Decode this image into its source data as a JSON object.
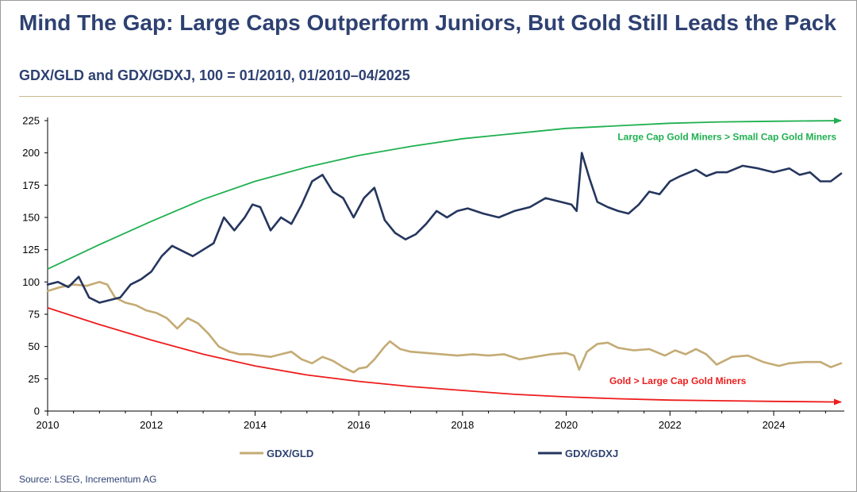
{
  "title": "Mind The Gap: Large Caps Outperform Juniors, But Gold Still Leads the Pack",
  "subtitle": "GDX/GLD and GDX/GDXJ, 100 = 01/2010, 01/2010–04/2025",
  "source": "Source: LSEG, Incrementum AG",
  "colors": {
    "title": "#2e4172",
    "gdx_gld": "#c4ab74",
    "gdx_gdxj": "#25365e",
    "green_arrow": "#1fb050",
    "red_arrow": "#ee1c1c"
  },
  "chart_data": {
    "type": "line",
    "xlim": [
      2010,
      2025.3
    ],
    "ylim": [
      0,
      225
    ],
    "x_ticks": [
      2010,
      2012,
      2014,
      2016,
      2018,
      2020,
      2022,
      2024
    ],
    "x_tick_labels": [
      "2010",
      "2012",
      "2014",
      "2016",
      "2018",
      "2020",
      "2022",
      "2024"
    ],
    "y_ticks": [
      0,
      25,
      50,
      75,
      100,
      125,
      150,
      175,
      200,
      225
    ],
    "y_tick_labels": [
      "0",
      "25",
      "50",
      "75",
      "100",
      "125",
      "150",
      "175",
      "200",
      "225"
    ],
    "legend_position": "bottom",
    "series": [
      {
        "name": "GDX/GLD",
        "color": "#c4ab74",
        "x": [
          2010.0,
          2010.25,
          2010.5,
          2010.75,
          2011.0,
          2011.15,
          2011.3,
          2011.5,
          2011.7,
          2011.9,
          2012.1,
          2012.3,
          2012.5,
          2012.7,
          2012.9,
          2013.1,
          2013.3,
          2013.5,
          2013.7,
          2013.9,
          2014.1,
          2014.3,
          2014.5,
          2014.7,
          2014.9,
          2015.1,
          2015.3,
          2015.5,
          2015.7,
          2015.9,
          2016.0,
          2016.15,
          2016.3,
          2016.5,
          2016.6,
          2016.8,
          2017.0,
          2017.3,
          2017.6,
          2017.9,
          2018.2,
          2018.5,
          2018.8,
          2019.1,
          2019.4,
          2019.7,
          2020.0,
          2020.15,
          2020.25,
          2020.4,
          2020.6,
          2020.8,
          2021.0,
          2021.3,
          2021.6,
          2021.9,
          2022.1,
          2022.3,
          2022.5,
          2022.7,
          2022.9,
          2023.2,
          2023.5,
          2023.8,
          2024.1,
          2024.3,
          2024.6,
          2024.9,
          2025.1,
          2025.3
        ],
        "values": [
          93,
          96,
          98,
          97,
          100,
          98,
          88,
          84,
          82,
          78,
          76,
          72,
          64,
          72,
          68,
          60,
          50,
          46,
          44,
          44,
          43,
          42,
          44,
          46,
          40,
          37,
          42,
          39,
          34,
          30,
          33,
          34,
          40,
          50,
          54,
          48,
          46,
          45,
          44,
          43,
          44,
          43,
          44,
          40,
          42,
          44,
          45,
          43,
          32,
          46,
          52,
          53,
          49,
          47,
          48,
          43,
          47,
          44,
          48,
          44,
          36,
          42,
          43,
          38,
          35,
          37,
          38,
          38,
          34,
          37
        ]
      },
      {
        "name": "GDX/GDXJ",
        "color": "#25365e",
        "x": [
          2010.0,
          2010.2,
          2010.4,
          2010.6,
          2010.8,
          2011.0,
          2011.2,
          2011.4,
          2011.6,
          2011.8,
          2012.0,
          2012.2,
          2012.4,
          2012.6,
          2012.8,
          2013.0,
          2013.2,
          2013.4,
          2013.6,
          2013.8,
          2013.95,
          2014.1,
          2014.3,
          2014.5,
          2014.7,
          2014.9,
          2015.1,
          2015.3,
          2015.5,
          2015.7,
          2015.9,
          2016.1,
          2016.3,
          2016.5,
          2016.7,
          2016.9,
          2017.1,
          2017.3,
          2017.5,
          2017.7,
          2017.9,
          2018.1,
          2018.4,
          2018.7,
          2019.0,
          2019.3,
          2019.6,
          2019.9,
          2020.1,
          2020.2,
          2020.3,
          2020.45,
          2020.6,
          2020.8,
          2021.0,
          2021.2,
          2021.4,
          2021.6,
          2021.8,
          2022.0,
          2022.2,
          2022.5,
          2022.7,
          2022.9,
          2023.1,
          2023.4,
          2023.7,
          2024.0,
          2024.3,
          2024.5,
          2024.7,
          2024.9,
          2025.1,
          2025.3
        ],
        "values": [
          98,
          100,
          96,
          104,
          88,
          84,
          86,
          88,
          98,
          102,
          108,
          120,
          128,
          124,
          120,
          125,
          130,
          150,
          140,
          150,
          160,
          158,
          140,
          150,
          145,
          160,
          178,
          183,
          170,
          165,
          150,
          165,
          173,
          148,
          138,
          133,
          137,
          145,
          155,
          150,
          155,
          157,
          153,
          150,
          155,
          158,
          165,
          162,
          160,
          155,
          200,
          180,
          162,
          158,
          155,
          153,
          160,
          170,
          168,
          178,
          182,
          187,
          182,
          185,
          185,
          190,
          188,
          185,
          188,
          183,
          185,
          178,
          178,
          184
        ]
      }
    ],
    "annotations": [
      {
        "text": "Large Cap Gold Miners > Small Cap Gold Miners",
        "color": "#1fb050",
        "arrow_x": [
          2010.0,
          2011.0,
          2012.0,
          2013.0,
          2014.0,
          2015.0,
          2016.0,
          2017.0,
          2018.0,
          2019.0,
          2020.0,
          2021.0,
          2022.0,
          2023.0,
          2024.0,
          2025.3
        ],
        "arrow_y": [
          110,
          129,
          147,
          164,
          178,
          189,
          198,
          205,
          211,
          215,
          219,
          221,
          223,
          224,
          224.5,
          225
        ]
      },
      {
        "text": "Gold > Large Cap Gold Miners",
        "color": "#ee1c1c",
        "arrow_x": [
          2010.0,
          2011.0,
          2012.0,
          2013.0,
          2014.0,
          2015.0,
          2016.0,
          2017.0,
          2018.0,
          2019.0,
          2020.0,
          2021.0,
          2022.0,
          2023.0,
          2024.0,
          2025.3
        ],
        "arrow_y": [
          80,
          67,
          55,
          44,
          35,
          28,
          23,
          19,
          16,
          13,
          11,
          9.5,
          8.5,
          8,
          7.5,
          7
        ]
      }
    ]
  }
}
